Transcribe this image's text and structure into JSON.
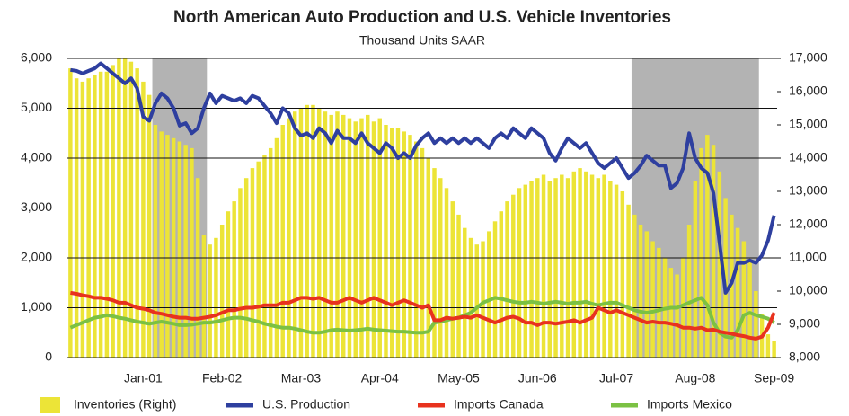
{
  "chart_data": {
    "type": "combo",
    "title": "North American Auto Production and U.S. Vehicle Inventories",
    "subtitle": "Thousand Units SAAR",
    "categories": [
      null,
      null,
      null,
      null,
      null,
      null,
      null,
      null,
      null,
      null,
      null,
      null,
      "Jan-01",
      null,
      null,
      null,
      null,
      null,
      null,
      null,
      null,
      null,
      null,
      null,
      null,
      "Feb-02",
      null,
      null,
      null,
      null,
      null,
      null,
      null,
      null,
      null,
      null,
      null,
      null,
      "Mar-03",
      null,
      null,
      null,
      null,
      null,
      null,
      null,
      null,
      null,
      null,
      null,
      null,
      "Apr-04",
      null,
      null,
      null,
      null,
      null,
      null,
      null,
      null,
      null,
      null,
      null,
      null,
      "May-05",
      null,
      null,
      null,
      null,
      null,
      null,
      null,
      null,
      null,
      null,
      null,
      null,
      "Jun-06",
      null,
      null,
      null,
      null,
      null,
      null,
      null,
      null,
      null,
      null,
      null,
      null,
      "Jul-07",
      null,
      null,
      null,
      null,
      null,
      null,
      null,
      null,
      null,
      null,
      null,
      null,
      "Aug-08",
      null,
      null,
      null,
      null,
      null,
      null,
      null,
      null,
      null,
      null,
      null,
      null,
      "Sep-09"
    ],
    "series": [
      {
        "name": "Inventories (Right)",
        "type": "bar",
        "axis": "y2",
        "color": "#ece437",
        "values": [
          16700,
          16400,
          16300,
          16400,
          16500,
          16600,
          16600,
          16800,
          17000,
          17000,
          16900,
          16700,
          16300,
          15900,
          15000,
          14800,
          14700,
          14600,
          14500,
          14400,
          14300,
          13400,
          11700,
          11400,
          11600,
          12000,
          12400,
          12700,
          13100,
          13400,
          13700,
          13900,
          14100,
          14300,
          14600,
          15000,
          15200,
          15400,
          15500,
          15600,
          15600,
          15500,
          15400,
          15300,
          15400,
          15300,
          15200,
          15100,
          15200,
          15300,
          15100,
          15200,
          15000,
          14900,
          14900,
          14800,
          14700,
          14500,
          14300,
          14000,
          13700,
          13400,
          13100,
          12700,
          12300,
          11900,
          11600,
          11400,
          11500,
          11800,
          12100,
          12400,
          12700,
          12900,
          13100,
          13200,
          13300,
          13400,
          13500,
          13300,
          13400,
          13500,
          13400,
          13600,
          13700,
          13600,
          13500,
          13400,
          13500,
          13300,
          13200,
          13000,
          12600,
          12300,
          12000,
          11800,
          11500,
          11300,
          11000,
          10700,
          10500,
          11000,
          12000,
          13300,
          14300,
          14700,
          14400,
          13600,
          12800,
          12300,
          11900,
          11500,
          10900,
          10000,
          9300,
          8700,
          8500
        ]
      },
      {
        "name": "U.S. Production",
        "type": "line",
        "color": "#2e3f9f",
        "values": [
          5770,
          5750,
          5700,
          5750,
          5800,
          5900,
          5800,
          5700,
          5600,
          5500,
          5600,
          5400,
          4830,
          4750,
          5100,
          5300,
          5200,
          5000,
          4650,
          4700,
          4500,
          4600,
          5000,
          5300,
          5100,
          5250,
          5200,
          5150,
          5200,
          5100,
          5250,
          5200,
          5050,
          4900,
          4700,
          5000,
          4900,
          4600,
          4450,
          4500,
          4400,
          4600,
          4500,
          4300,
          4550,
          4400,
          4400,
          4300,
          4500,
          4300,
          4200,
          4100,
          4300,
          4200,
          4000,
          4100,
          4000,
          4250,
          4400,
          4500,
          4300,
          4400,
          4300,
          4400,
          4300,
          4400,
          4300,
          4400,
          4300,
          4200,
          4400,
          4500,
          4400,
          4600,
          4500,
          4400,
          4600,
          4500,
          4400,
          4100,
          3950,
          4200,
          4400,
          4300,
          4200,
          4300,
          4100,
          3900,
          3800,
          3900,
          4000,
          3800,
          3600,
          3700,
          3850,
          4050,
          3950,
          3850,
          3850,
          3400,
          3500,
          3800,
          4500,
          4000,
          3800,
          3700,
          3300,
          2300,
          1300,
          1500,
          1900,
          1900,
          1950,
          1900,
          2050,
          2350,
          2850
        ]
      },
      {
        "name": "Imports Canada",
        "type": "line",
        "color": "#e8321e",
        "values": [
          1300,
          1280,
          1250,
          1230,
          1200,
          1200,
          1180,
          1150,
          1100,
          1100,
          1050,
          1000,
          980,
          950,
          900,
          880,
          850,
          820,
          800,
          800,
          780,
          780,
          800,
          820,
          850,
          900,
          950,
          950,
          980,
          1000,
          1000,
          1020,
          1050,
          1050,
          1050,
          1100,
          1100,
          1150,
          1200,
          1200,
          1180,
          1200,
          1150,
          1100,
          1100,
          1150,
          1200,
          1150,
          1100,
          1150,
          1200,
          1150,
          1100,
          1050,
          1100,
          1150,
          1100,
          1050,
          1000,
          1050,
          750,
          750,
          800,
          780,
          800,
          820,
          800,
          850,
          800,
          750,
          700,
          750,
          800,
          820,
          780,
          700,
          700,
          650,
          700,
          700,
          680,
          700,
          720,
          750,
          700,
          750,
          800,
          1000,
          950,
          900,
          950,
          900,
          850,
          800,
          750,
          700,
          720,
          700,
          700,
          680,
          650,
          600,
          600,
          580,
          600,
          550,
          560,
          520,
          500,
          480,
          450,
          430,
          400,
          380,
          420,
          600,
          900
        ]
      },
      {
        "name": "Imports Mexico",
        "type": "line",
        "color": "#7bc143",
        "values": [
          600,
          650,
          700,
          750,
          800,
          820,
          850,
          830,
          800,
          780,
          750,
          720,
          700,
          680,
          700,
          720,
          700,
          680,
          650,
          650,
          660,
          680,
          700,
          700,
          720,
          750,
          780,
          800,
          800,
          780,
          750,
          720,
          680,
          650,
          620,
          600,
          600,
          580,
          550,
          520,
          500,
          500,
          520,
          550,
          560,
          550,
          540,
          550,
          560,
          580,
          560,
          550,
          540,
          530,
          520,
          520,
          510,
          500,
          500,
          520,
          700,
          720,
          750,
          780,
          800,
          850,
          900,
          1000,
          1100,
          1150,
          1200,
          1180,
          1150,
          1120,
          1100,
          1100,
          1120,
          1100,
          1080,
          1100,
          1120,
          1100,
          1080,
          1100,
          1100,
          1120,
          1080,
          1050,
          1080,
          1100,
          1100,
          1050,
          1000,
          950,
          920,
          900,
          920,
          950,
          980,
          1000,
          1000,
          1050,
          1100,
          1150,
          1200,
          1050,
          700,
          500,
          420,
          400,
          550,
          850,
          900,
          850,
          820,
          780,
          700
        ]
      }
    ],
    "shaded_periods": [
      {
        "start": 14,
        "end": 22
      },
      {
        "start": 93,
        "end": 113
      }
    ],
    "shade_color": "#b3b3b3",
    "ylim": [
      0,
      6000
    ],
    "yticks": [
      0,
      {
        "value": 1000,
        "label": "1,000"
      },
      {
        "value": 2000,
        "label": "2,000"
      },
      {
        "value": 3000,
        "label": "3,000"
      },
      {
        "value": 4000,
        "label": "4,000"
      },
      {
        "value": 5000,
        "label": "5,000"
      },
      {
        "value": 6000,
        "label": "6,000"
      }
    ],
    "y2lim": [
      8000,
      17000
    ],
    "y2ticks": [
      {
        "value": 8000,
        "label": "8,000"
      },
      {
        "value": 9000,
        "label": "9,000"
      },
      {
        "value": 10000,
        "label": "10,000"
      },
      {
        "value": 11000,
        "label": "11,000"
      },
      {
        "value": 12000,
        "label": "12,000"
      },
      {
        "value": 13000,
        "label": "13,000"
      },
      {
        "value": 14000,
        "label": "14,000"
      },
      {
        "value": 15000,
        "label": "15,000"
      },
      {
        "value": 16000,
        "label": "16,000"
      },
      {
        "value": 17000,
        "label": "17,000"
      }
    ],
    "grid": true,
    "legend": "bottom"
  }
}
